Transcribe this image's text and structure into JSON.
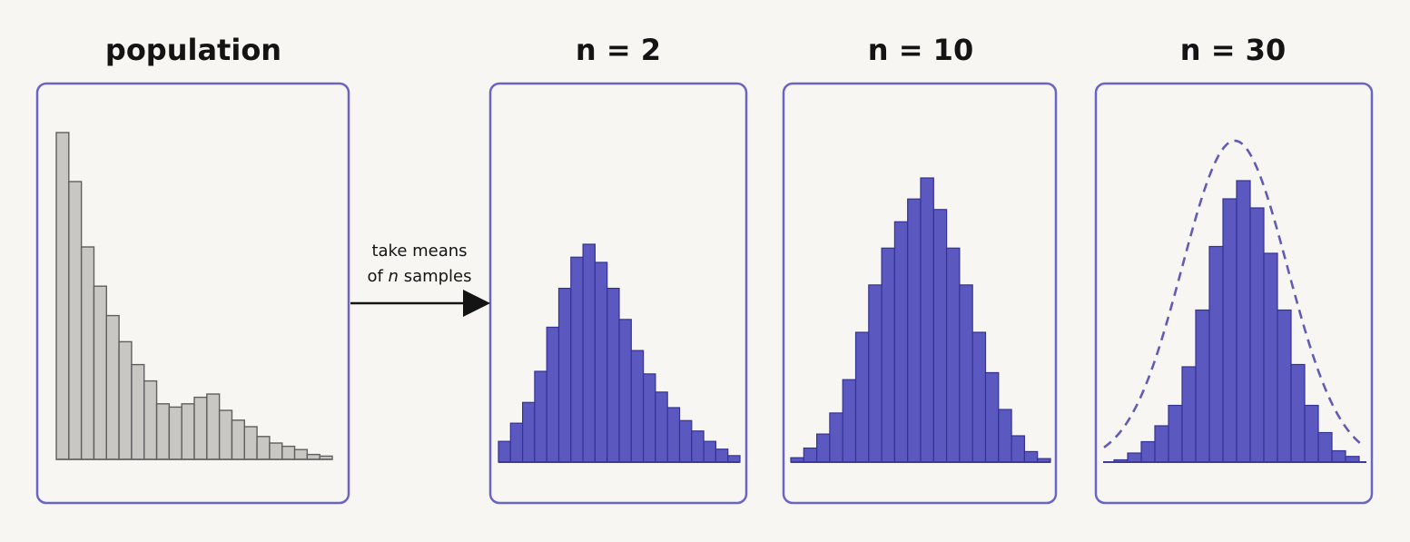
{
  "arrow": {
    "line1": "take means",
    "line2_prefix": "of ",
    "line2_italic": "n",
    "line2_suffix": " samples"
  },
  "colors": {
    "frame": "#6b64c4",
    "population_bar": "#c8c7c3",
    "sample_bar": "#5b59c0",
    "curve": "#625cb5",
    "background": "#f7f6f3"
  },
  "chart_data": [
    {
      "type": "bar",
      "title": "population",
      "series": [
        {
          "values": [
            100,
            85,
            65,
            53,
            44,
            36,
            29,
            24,
            17,
            16,
            17,
            19,
            20,
            15,
            12,
            10,
            7,
            5,
            4,
            3,
            1.5,
            1
          ]
        }
      ]
    },
    {
      "type": "bar",
      "title": "n = 2",
      "series": [
        {
          "values": [
            8,
            15,
            23,
            35,
            52,
            67,
            79,
            84,
            77,
            67,
            55,
            43,
            34,
            27,
            21,
            16,
            12,
            8,
            5,
            2.5
          ]
        }
      ]
    },
    {
      "type": "bar",
      "title": "n = 10",
      "series": [
        {
          "values": [
            2.5,
            8,
            16,
            28,
            47,
            74,
            101,
            122,
            137,
            150,
            162,
            144,
            122,
            101,
            74,
            51,
            30,
            15,
            6,
            2
          ]
        }
      ]
    },
    {
      "type": "bar",
      "title": "n = 30",
      "series": [
        {
          "values": [
            1,
            4,
            9,
            16,
            25,
            42,
            67,
            95,
            116,
            124,
            112,
            92,
            67,
            43,
            25,
            13,
            5,
            2.5
          ]
        }
      ],
      "overlay": {
        "type": "normal-curve",
        "style": "dashed"
      }
    }
  ]
}
